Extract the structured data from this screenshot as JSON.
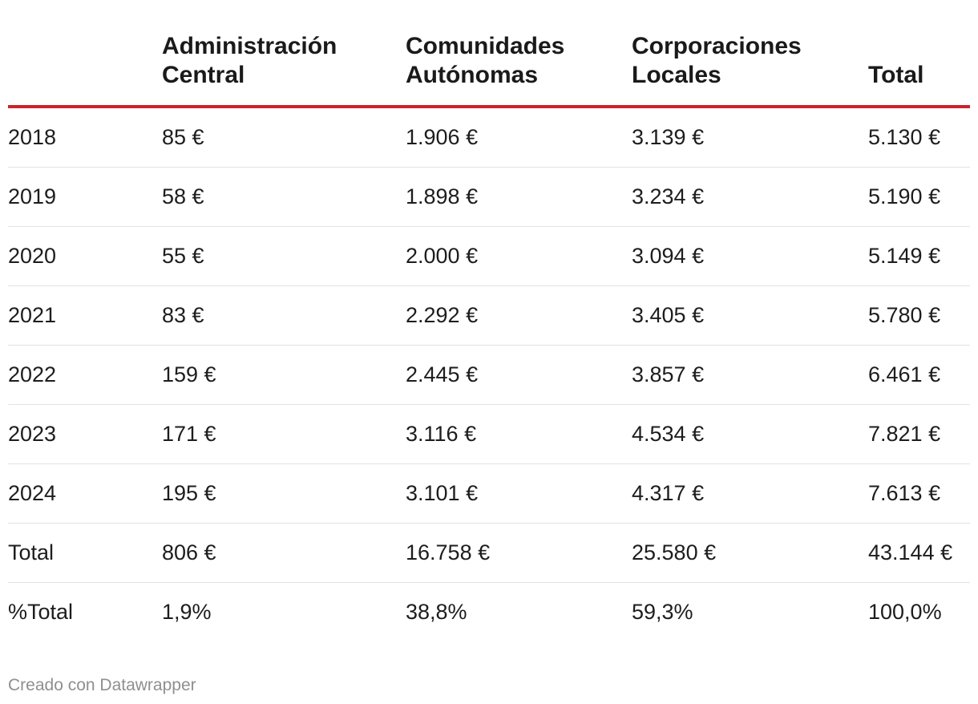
{
  "chart_data": {
    "type": "table",
    "columns": [
      "",
      "Administración Central",
      "Comunidades Autónomas",
      "Corporaciones Locales",
      "Total"
    ],
    "header_lines": [
      [
        ""
      ],
      [
        "Administración",
        "Central"
      ],
      [
        "Comunidades",
        "Autónomas"
      ],
      [
        "Corporaciones",
        "Locales"
      ],
      [
        "Total"
      ]
    ],
    "rows": [
      [
        "2018",
        "85 €",
        "1.906 €",
        "3.139 €",
        "5.130 €"
      ],
      [
        "2019",
        "58 €",
        "1.898 €",
        "3.234 €",
        "5.190 €"
      ],
      [
        "2020",
        "55 €",
        "2.000 €",
        "3.094 €",
        "5.149 €"
      ],
      [
        "2021",
        "83 €",
        "2.292 €",
        "3.405 €",
        "5.780 €"
      ],
      [
        "2022",
        "159 €",
        "2.445 €",
        "3.857 €",
        "6.461 €"
      ],
      [
        "2023",
        "171 €",
        "3.116 €",
        "4.534 €",
        "7.821 €"
      ],
      [
        "2024",
        "195 €",
        "3.101 €",
        "4.317 €",
        "7.613 €"
      ],
      [
        "Total",
        "806 €",
        "16.758 €",
        "25.580 €",
        "43.144 €"
      ],
      [
        "%Total",
        "1,9%",
        "38,8%",
        "59,3%",
        "100,0%"
      ]
    ]
  },
  "footer": {
    "credit": "Creado con Datawrapper"
  },
  "colors": {
    "header_rule": "#c9242b",
    "row_divider": "#e2e2e2",
    "text": "#1d1d1d",
    "credit_text": "#8f8f8f"
  }
}
